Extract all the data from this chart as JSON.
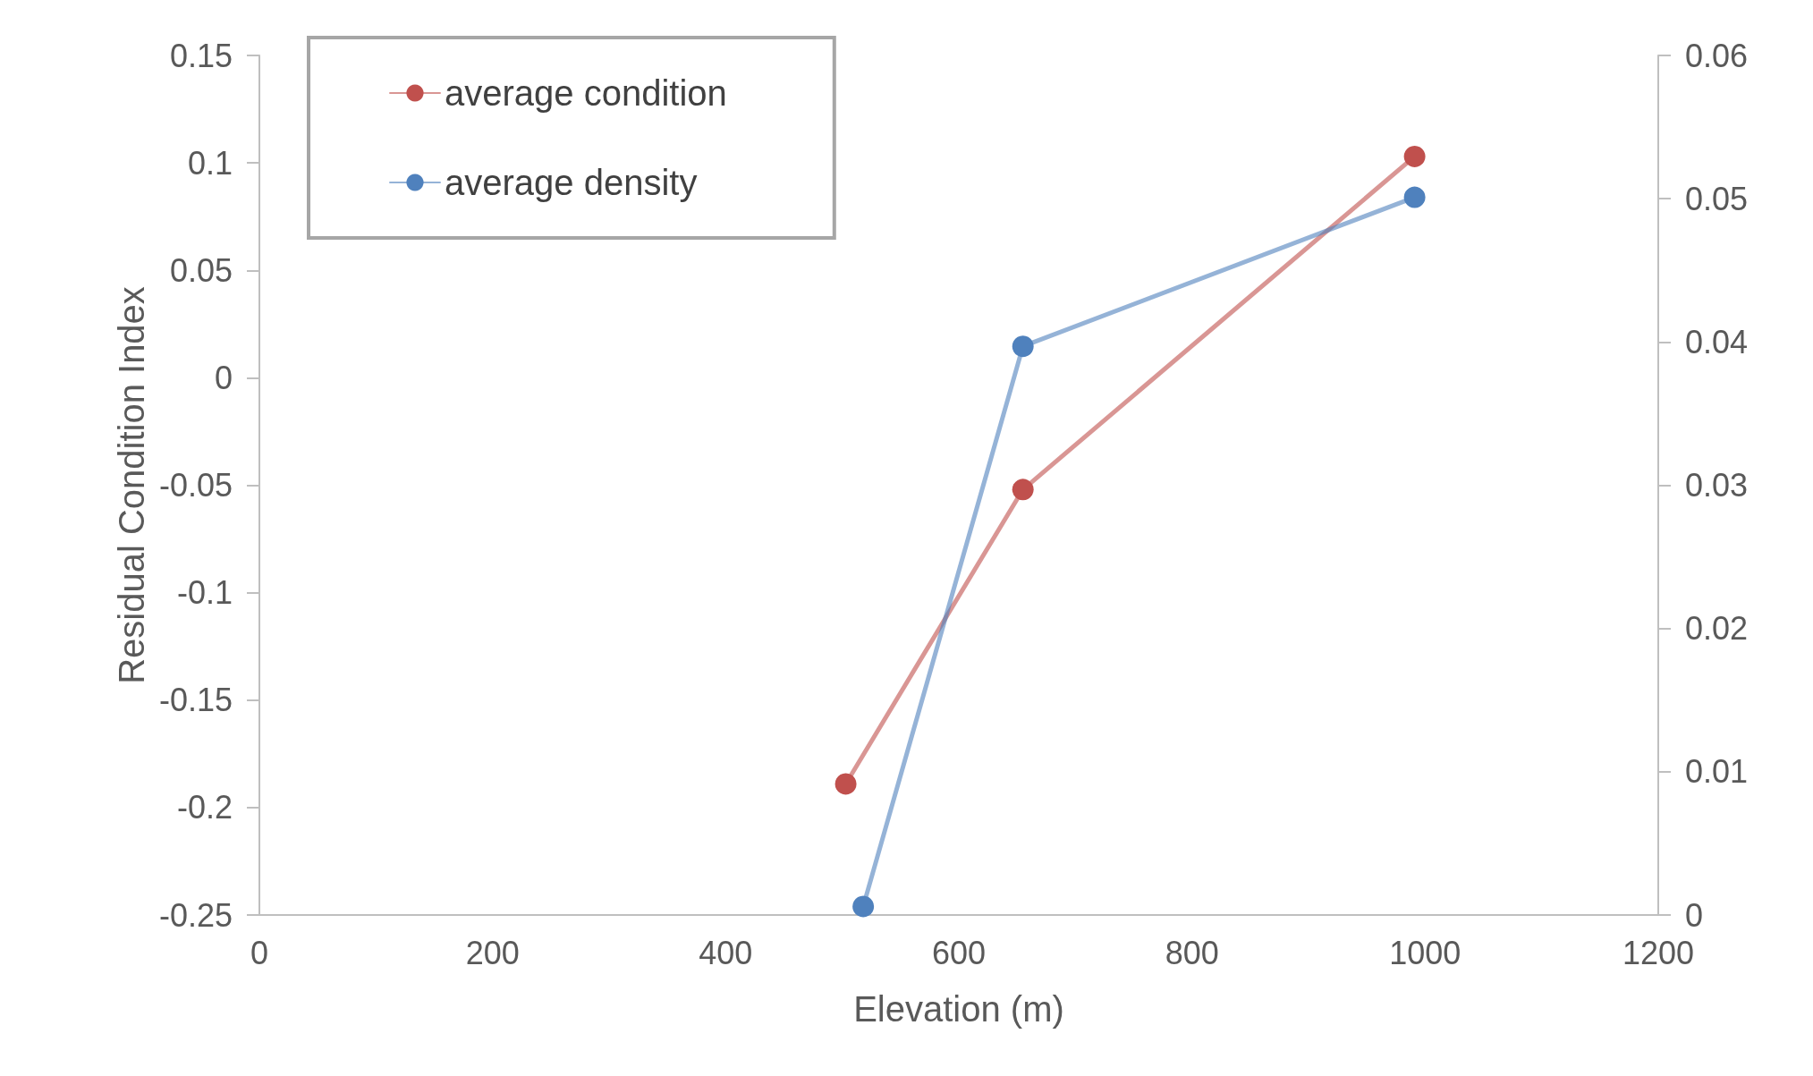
{
  "chart_data": {
    "type": "line",
    "xlabel": "Elevation (m)",
    "ylabel": "Residual Condition Index",
    "xlim": [
      0,
      1200
    ],
    "xticks": [
      0,
      200,
      400,
      600,
      800,
      1000,
      1200
    ],
    "ylim": [
      -0.25,
      0.15
    ],
    "yticks": [
      -0.25,
      -0.2,
      -0.15,
      -0.1,
      -0.05,
      0,
      0.05,
      0.1,
      0.15
    ],
    "y2lim": [
      0,
      0.06
    ],
    "y2ticks": [
      0,
      0.01,
      0.02,
      0.03,
      0.04,
      0.05,
      0.06
    ],
    "grid": false,
    "legend": "top left",
    "marker": "circle",
    "line_style": "solid",
    "series": [
      {
        "name": "average condition",
        "color": "#c0504d",
        "x": [
          503,
          655,
          991
        ],
        "values": [
          -0.189,
          -0.052,
          0.103
        ]
      },
      {
        "name": "average density",
        "color": "#4f81bd",
        "axis": "y2",
        "x": [
          518,
          655,
          991
        ],
        "values": [
          0.0006,
          0.0397,
          0.0501
        ]
      }
    ]
  }
}
